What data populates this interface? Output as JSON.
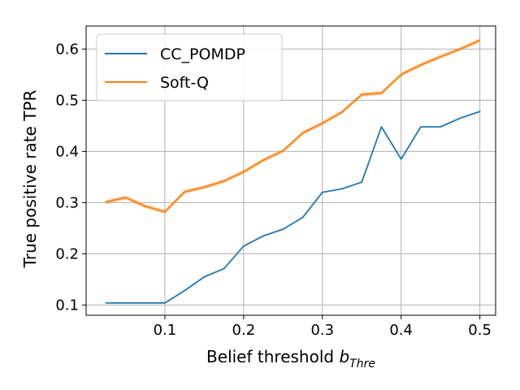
{
  "chart_data": {
    "type": "line",
    "title": "",
    "xlabel": "Belief threshold ",
    "xlabel_symbol": "b",
    "xlabel_subscript": "Thre",
    "ylabel": "True positive rate TPR",
    "xlim": [
      0.0,
      0.52
    ],
    "ylim": [
      0.08,
      0.645
    ],
    "xticks": [
      0.1,
      0.2,
      0.3,
      0.4,
      0.5
    ],
    "xtick_labels": [
      "0.1",
      "0.2",
      "0.3",
      "0.4",
      "0.5"
    ],
    "yticks": [
      0.1,
      0.2,
      0.3,
      0.4,
      0.5,
      0.6
    ],
    "ytick_labels": [
      "0.1",
      "0.2",
      "0.3",
      "0.4",
      "0.5",
      "0.6"
    ],
    "grid": true,
    "legend_position": "top-left",
    "x": [
      0.025,
      0.05,
      0.075,
      0.1,
      0.125,
      0.15,
      0.175,
      0.2,
      0.225,
      0.25,
      0.275,
      0.3,
      0.325,
      0.35,
      0.375,
      0.4,
      0.425,
      0.45,
      0.475,
      0.5
    ],
    "series": [
      {
        "name": "CC_POMDP",
        "color": "#1f77b4",
        "values": [
          0.104,
          0.104,
          0.104,
          0.104,
          0.128,
          0.155,
          0.171,
          0.215,
          0.235,
          0.248,
          0.271,
          0.32,
          0.327,
          0.34,
          0.448,
          0.385,
          0.448,
          0.448,
          0.465,
          0.478
        ]
      },
      {
        "name": "Soft-Q",
        "color": "#ff7f0e",
        "band": 0.004,
        "values": [
          0.301,
          0.31,
          0.293,
          0.282,
          0.321,
          0.33,
          0.342,
          0.36,
          0.383,
          0.401,
          0.436,
          0.455,
          0.477,
          0.511,
          0.514,
          0.55,
          0.569,
          0.585,
          0.6,
          0.617
        ]
      }
    ]
  }
}
